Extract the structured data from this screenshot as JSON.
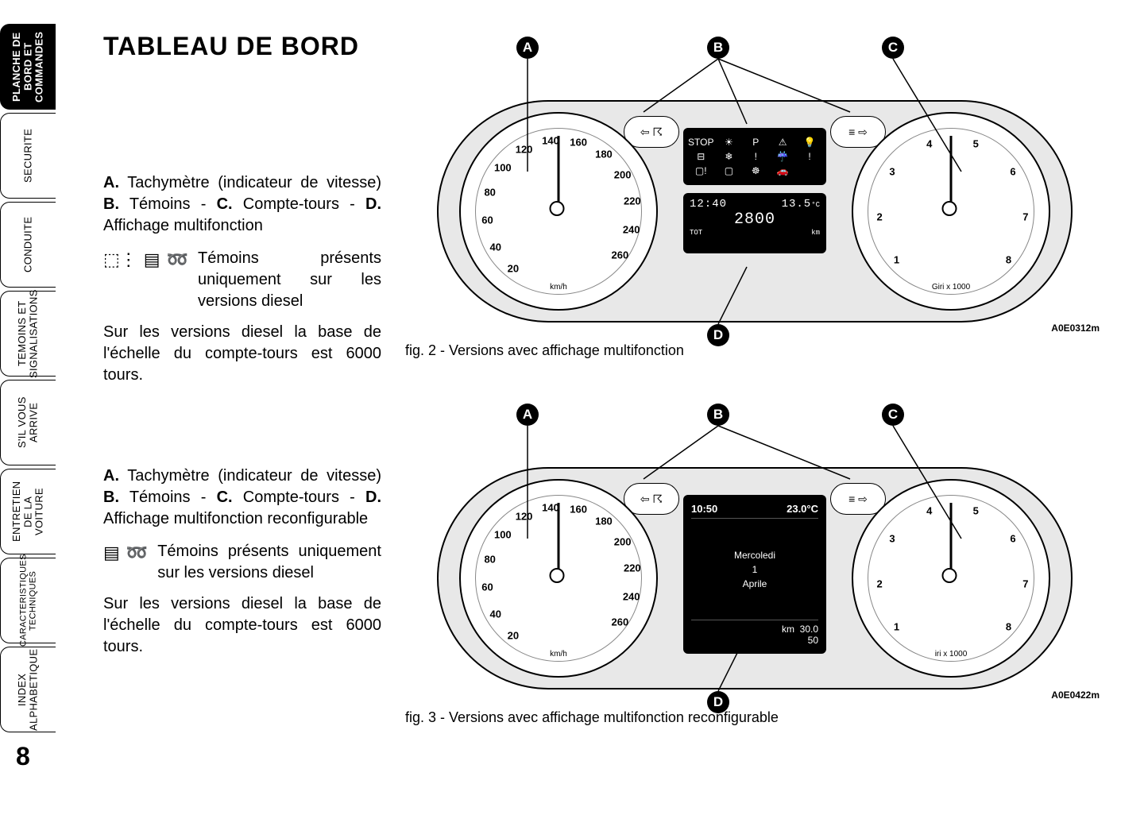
{
  "page_number": "8",
  "title": "TABLEAU DE BORD",
  "sidebar": {
    "tabs": [
      {
        "label": "PLANCHE DE\nBORD ET\nCOMMANDES",
        "active": true
      },
      {
        "label": "SECURITE",
        "active": false
      },
      {
        "label": "CONDUITE",
        "active": false
      },
      {
        "label": "TEMOINS ET\nSIGNALISATIONS",
        "active": false
      },
      {
        "label": "S'IL VOUS\nARRIVE",
        "active": false
      },
      {
        "label": "ENTRETIEN\nDE LA VOITURE",
        "active": false
      },
      {
        "label": "CARACTERISTIQUES\nTECHNIQUES",
        "active": false
      },
      {
        "label": "INDEX\nALPHABETIQUE",
        "active": false
      }
    ]
  },
  "section1": {
    "legend_a": "A.",
    "legend_a_text": " Tachymètre (indicateur de vitesse) ",
    "legend_b": "B.",
    "legend_b_text": " Témoins - ",
    "legend_c": "C.",
    "legend_c_text": " Compte-tours - ",
    "legend_d": "D.",
    "legend_d_text": " Affichage multifonction",
    "diesel_note": "Témoins présents uniquement sur les versions diesel",
    "diesel_para": "Sur les versions diesel la base de l'échelle du compte-tours est 6000 tours."
  },
  "section2": {
    "legend_a": "A.",
    "legend_a_text": " Tachymètre (indicateur de vitesse) ",
    "legend_b": "B.",
    "legend_b_text": " Témoins - ",
    "legend_c": "C.",
    "legend_c_text": " Compte-tours - ",
    "legend_d": "D.",
    "legend_d_text": " Affichage multifonction reconfigurable",
    "diesel_note": "Témoins présents uniquement sur les versions diesel",
    "diesel_para": "Sur les versions diesel la base de l'échelle du compte-tours est 6000 tours."
  },
  "figure1": {
    "caption": "fig. 2 - Versions avec affichage multifonction",
    "code": "A0E0312m",
    "callouts": {
      "a": "A",
      "b": "B",
      "c": "C",
      "d": "D"
    },
    "speedo": {
      "values": [
        "20",
        "40",
        "60",
        "80",
        "100",
        "120",
        "140",
        "160",
        "180",
        "200",
        "220",
        "240",
        "260"
      ],
      "unit": "km/h"
    },
    "tacho": {
      "values": [
        "1",
        "2",
        "3",
        "4",
        "5",
        "6",
        "7",
        "8"
      ],
      "unit": "Giri x 1000"
    },
    "lcd": {
      "time": "12:40",
      "temp": "13.5",
      "temp_unit": "°C",
      "odo_label": "TOT",
      "odo_value": "2800",
      "odo_unit": "km"
    }
  },
  "figure2": {
    "caption": "fig. 3 - Versions avec affichage multifonction reconfigurable",
    "code": "A0E0422m",
    "callouts": {
      "a": "A",
      "b": "B",
      "c": "C",
      "d": "D"
    },
    "speedo": {
      "values": [
        "20",
        "40",
        "60",
        "80",
        "100",
        "120",
        "140",
        "160",
        "180",
        "200",
        "220",
        "240",
        "260"
      ],
      "unit": "km/h"
    },
    "tacho": {
      "values": [
        "1",
        "2",
        "3",
        "4",
        "5",
        "6",
        "7",
        "8"
      ],
      "unit": "iri x 1000"
    },
    "mfd": {
      "time": "10:50",
      "temp": "23.0°C",
      "day": "Mercoledi",
      "date_num": "1",
      "month": "Aprile",
      "km_label": "km",
      "km1": "30.0",
      "km2": "50"
    }
  },
  "colors": {
    "page_bg": "#ffffff",
    "cluster_bg": "#e8e8e8",
    "ink": "#000000"
  }
}
